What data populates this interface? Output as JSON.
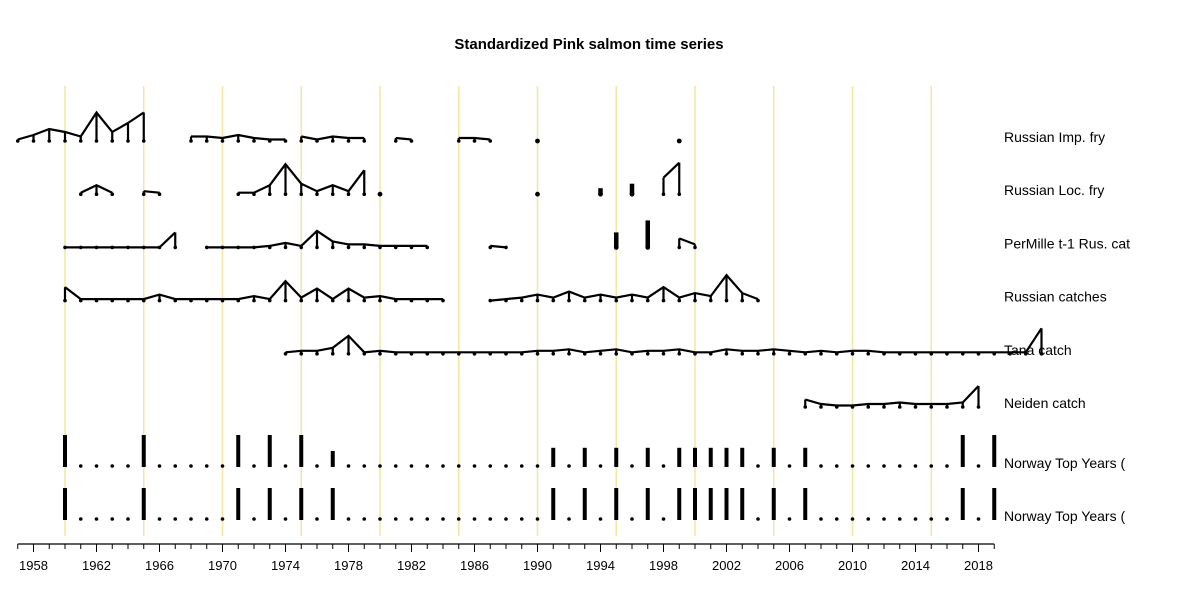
{
  "chart_data": {
    "type": "line",
    "title": "Standardized Pink salmon time series",
    "xlabel": "",
    "ylabel": "",
    "xlim": [
      1957,
      2019
    ],
    "grid": {
      "x_every": 5,
      "from": 1960,
      "to": 2015,
      "color": "#f2e6a0"
    },
    "tick_labels": [
      "1958",
      "1962",
      "1966",
      "1970",
      "1974",
      "1978",
      "1982",
      "1986",
      "1990",
      "1994",
      "1998",
      "2002",
      "2006",
      "2010",
      "2014",
      "2018"
    ],
    "series": [
      {
        "name": "Russian Imp. fry",
        "segments": [
          {
            "start": 1957,
            "values": [
              0.1,
              0.4,
              0.8,
              0.6,
              0.3,
              1.9,
              0.6,
              1.2,
              1.9
            ]
          },
          {
            "start": 1968,
            "values": [
              0.3,
              0.3,
              0.2,
              0.4,
              0.2,
              0.1,
              0.1
            ]
          },
          {
            "start": 1975,
            "values": [
              0.3,
              0.1,
              0.3,
              0.2,
              0.2
            ]
          },
          {
            "start": 1981,
            "values": [
              0.2,
              0.1
            ]
          },
          {
            "start": 1985,
            "values": [
              0.2,
              0.2,
              0.1
            ]
          }
        ],
        "points": [
          {
            "x": 1990,
            "y": 0.0
          },
          {
            "x": 1999,
            "y": 0.0
          }
        ]
      },
      {
        "name": "Russian Loc. fry",
        "segments": [
          {
            "start": 1961,
            "values": [
              0.1,
              0.6,
              0.1
            ]
          },
          {
            "start": 1965,
            "values": [
              0.2,
              0.1
            ]
          },
          {
            "start": 1971,
            "values": [
              0.1,
              0.1,
              0.6,
              2.0,
              0.7,
              0.2,
              0.6,
              0.2,
              1.6
            ]
          },
          {
            "start": 1998,
            "values": [
              1.1,
              2.1
            ]
          }
        ],
        "points": [
          {
            "x": 1980,
            "y": 0.0
          },
          {
            "x": 1990,
            "y": 0.0
          },
          {
            "x": 1994,
            "y": 0.4
          },
          {
            "x": 1996,
            "y": 0.7
          }
        ]
      },
      {
        "name": "PerMille t-1 Rus. cat",
        "segments": [
          {
            "start": 1960,
            "values": [
              0.0,
              0.0,
              0.0,
              0.0,
              0.0,
              0.0,
              0.0,
              1.0
            ]
          },
          {
            "start": 1969,
            "values": [
              0.0,
              0.0,
              0.0,
              0.0,
              0.1,
              0.3,
              0.1,
              1.1,
              0.4,
              0.2,
              0.2,
              0.1,
              0.1,
              0.1,
              0.1
            ]
          },
          {
            "start": 1987,
            "values": [
              0.1,
              0.0
            ]
          },
          {
            "start": 1999,
            "values": [
              0.6,
              0.2
            ]
          }
        ],
        "points": [
          {
            "x": 1995,
            "y": 1.0
          },
          {
            "x": 1997,
            "y": 1.8
          }
        ]
      },
      {
        "name": "Russian catches",
        "segments": [
          {
            "start": 1960,
            "values": [
              0.9,
              0.1,
              0.1,
              0.1,
              0.1,
              0.1,
              0.4,
              0.1,
              0.1,
              0.1,
              0.1,
              0.1,
              0.3,
              0.1,
              1.3,
              0.2,
              0.8,
              0.1,
              0.8,
              0.2,
              0.3,
              0.1,
              0.1,
              0.1,
              0.1
            ]
          },
          {
            "start": 1987,
            "values": [
              0.0,
              0.1,
              0.2,
              0.4,
              0.2,
              0.6,
              0.2,
              0.4,
              0.2,
              0.4,
              0.2,
              0.9,
              0.2,
              0.5,
              0.3,
              1.7,
              0.5,
              0.1
            ]
          }
        ],
        "points": []
      },
      {
        "name": "Tana catch",
        "segments": [
          {
            "start": 1974,
            "values": [
              0.1,
              0.2,
              0.2,
              0.4,
              1.2,
              0.1,
              0.2,
              0.1,
              0.1,
              0.1,
              0.1,
              0.1,
              0.1,
              0.1,
              0.1,
              0.1,
              0.2,
              0.2,
              0.3,
              0.1,
              0.2,
              0.3,
              0.1,
              0.2,
              0.2,
              0.3,
              0.1,
              0.1,
              0.3,
              0.2,
              0.2,
              0.3,
              0.2,
              0.1,
              0.2,
              0.1,
              0.2,
              0.2,
              0.1,
              0.1,
              0.1,
              0.1,
              0.1,
              0.1,
              0.1,
              0.1,
              0.1,
              0.1,
              1.7
            ]
          }
        ],
        "points": []
      },
      {
        "name": "Neiden catch",
        "segments": [
          {
            "start": 2007,
            "values": [
              0.5,
              0.2,
              0.1,
              0.1,
              0.2,
              0.2,
              0.3,
              0.2,
              0.2,
              0.2,
              0.3,
              1.4
            ]
          }
        ],
        "points": []
      },
      {
        "name": "Norway Top Years (",
        "bars": [
          {
            "x": 1960,
            "y": 1.0
          },
          {
            "x": 1965,
            "y": 1.0
          },
          {
            "x": 1971,
            "y": 1.0
          },
          {
            "x": 1973,
            "y": 1.0
          },
          {
            "x": 1975,
            "y": 1.0
          },
          {
            "x": 1977,
            "y": 0.5
          },
          {
            "x": 1991,
            "y": 0.6
          },
          {
            "x": 1993,
            "y": 0.6
          },
          {
            "x": 1995,
            "y": 0.6
          },
          {
            "x": 1997,
            "y": 0.6
          },
          {
            "x": 1999,
            "y": 0.6
          },
          {
            "x": 2000,
            "y": 0.6
          },
          {
            "x": 2001,
            "y": 0.6
          },
          {
            "x": 2002,
            "y": 0.6
          },
          {
            "x": 2003,
            "y": 0.6
          },
          {
            "x": 2005,
            "y": 0.6
          },
          {
            "x": 2007,
            "y": 0.6
          },
          {
            "x": 2017,
            "y": 1.0
          },
          {
            "x": 2019,
            "y": 1.0
          }
        ]
      },
      {
        "name": "Norway Top Years (",
        "bars": [
          {
            "x": 1960,
            "y": 1.0
          },
          {
            "x": 1965,
            "y": 1.0
          },
          {
            "x": 1971,
            "y": 1.0
          },
          {
            "x": 1973,
            "y": 1.0
          },
          {
            "x": 1975,
            "y": 1.0
          },
          {
            "x": 1977,
            "y": 1.0
          },
          {
            "x": 1991,
            "y": 1.0
          },
          {
            "x": 1993,
            "y": 1.0
          },
          {
            "x": 1995,
            "y": 1.0
          },
          {
            "x": 1997,
            "y": 1.0
          },
          {
            "x": 1999,
            "y": 1.0
          },
          {
            "x": 2000,
            "y": 1.0
          },
          {
            "x": 2001,
            "y": 1.0
          },
          {
            "x": 2002,
            "y": 1.0
          },
          {
            "x": 2003,
            "y": 1.0
          },
          {
            "x": 2005,
            "y": 1.0
          },
          {
            "x": 2007,
            "y": 1.0
          },
          {
            "x": 2017,
            "y": 1.0
          },
          {
            "x": 2019,
            "y": 1.0
          }
        ]
      }
    ]
  }
}
